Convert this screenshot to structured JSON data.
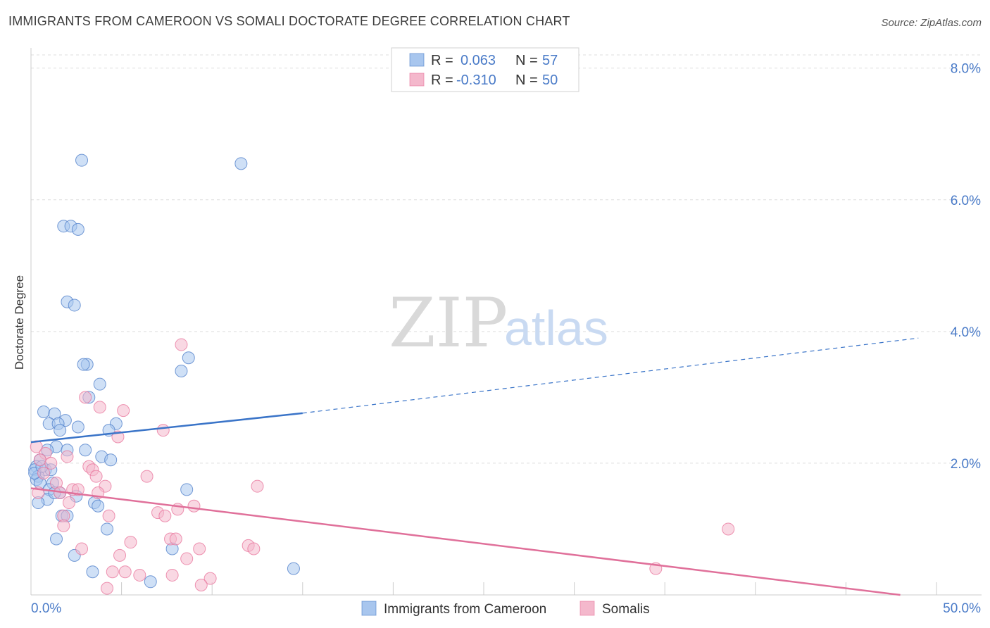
{
  "header": {
    "title": "IMMIGRANTS FROM CAMEROON VS SOMALI DOCTORATE DEGREE CORRELATION CHART",
    "source": "Source: ZipAtlas.com"
  },
  "watermark": {
    "zip": "ZIP",
    "atlas": "atlas"
  },
  "colors": {
    "blue": "#4a7bc8",
    "blue_fill": "#a8c6ee",
    "blue_line": "#3a74c8",
    "pink": "#e8719a",
    "pink_fill": "#f4b8cc",
    "pink_line": "#e0709a",
    "grid": "#dddddd"
  },
  "chart_data": {
    "type": "scatter",
    "title": "IMMIGRANTS FROM CAMEROON VS SOMALI DOCTORATE DEGREE CORRELATION CHART",
    "xlabel": "",
    "ylabel": "Doctorate Degree",
    "xlim": [
      0,
      50
    ],
    "ylim": [
      0,
      8.2
    ],
    "x_tick_labels": [
      "0.0%",
      "50.0%"
    ],
    "y_ticks": [
      2,
      4,
      6,
      8
    ],
    "y_tick_labels": [
      "2.0%",
      "4.0%",
      "6.0%",
      "8.0%"
    ],
    "legend": [
      {
        "r_label": "R =",
        "r_value": "0.063",
        "n_label": "N =",
        "n_value": "57"
      },
      {
        "r_label": "R =",
        "r_value": "-0.310",
        "n_label": "N =",
        "n_value": "50"
      }
    ],
    "series": [
      {
        "name": "Immigrants from Cameroon",
        "color": "#4a7bc8",
        "trend": {
          "x0": 0,
          "y0": 2.32,
          "x1": 15,
          "y1": 2.76,
          "dash_to_x": 49,
          "dash_to_y": 3.9
        },
        "points": [
          [
            2.8,
            6.6
          ],
          [
            11.6,
            6.55
          ],
          [
            1.8,
            5.6
          ],
          [
            2.2,
            5.6
          ],
          [
            2.6,
            5.55
          ],
          [
            2.0,
            4.45
          ],
          [
            2.4,
            4.4
          ],
          [
            8.7,
            3.6
          ],
          [
            3.1,
            3.5
          ],
          [
            2.9,
            3.5
          ],
          [
            8.3,
            3.4
          ],
          [
            3.8,
            3.2
          ],
          [
            3.2,
            3.0
          ],
          [
            0.7,
            2.78
          ],
          [
            1.3,
            2.75
          ],
          [
            1.9,
            2.65
          ],
          [
            1.0,
            2.6
          ],
          [
            1.5,
            2.6
          ],
          [
            2.6,
            2.55
          ],
          [
            1.6,
            2.5
          ],
          [
            4.7,
            2.6
          ],
          [
            4.3,
            2.5
          ],
          [
            1.4,
            2.25
          ],
          [
            2.0,
            2.2
          ],
          [
            3.0,
            2.2
          ],
          [
            0.9,
            2.2
          ],
          [
            3.9,
            2.1
          ],
          [
            4.4,
            2.05
          ],
          [
            0.5,
            2.05
          ],
          [
            0.3,
            1.95
          ],
          [
            0.2,
            1.9
          ],
          [
            0.8,
            1.9
          ],
          [
            1.1,
            1.9
          ],
          [
            0.4,
            1.8
          ],
          [
            0.3,
            1.75
          ],
          [
            0.5,
            1.7
          ],
          [
            1.2,
            1.7
          ],
          [
            1.0,
            1.6
          ],
          [
            1.6,
            1.55
          ],
          [
            8.6,
            1.6
          ],
          [
            2.5,
            1.5
          ],
          [
            0.9,
            1.45
          ],
          [
            0.4,
            1.4
          ],
          [
            3.5,
            1.4
          ],
          [
            3.7,
            1.35
          ],
          [
            1.7,
            1.2
          ],
          [
            2.0,
            1.2
          ],
          [
            4.2,
            1.0
          ],
          [
            1.4,
            0.85
          ],
          [
            7.8,
            0.7
          ],
          [
            2.4,
            0.6
          ],
          [
            14.5,
            0.4
          ],
          [
            3.4,
            0.35
          ],
          [
            6.6,
            0.2
          ],
          [
            0.2,
            1.85
          ],
          [
            0.6,
            1.95
          ],
          [
            1.3,
            1.55
          ]
        ]
      },
      {
        "name": "Somalis",
        "color": "#e8719a",
        "trend": {
          "x0": 0,
          "y0": 1.62,
          "x1": 48,
          "y1": 0.0
        },
        "points": [
          [
            8.3,
            3.8
          ],
          [
            3.0,
            3.0
          ],
          [
            3.8,
            2.85
          ],
          [
            5.1,
            2.8
          ],
          [
            7.3,
            2.5
          ],
          [
            4.8,
            2.4
          ],
          [
            0.3,
            2.25
          ],
          [
            0.8,
            2.15
          ],
          [
            2.0,
            2.1
          ],
          [
            0.5,
            2.05
          ],
          [
            1.1,
            2.0
          ],
          [
            3.2,
            1.95
          ],
          [
            3.4,
            1.9
          ],
          [
            0.7,
            1.85
          ],
          [
            3.6,
            1.8
          ],
          [
            6.4,
            1.8
          ],
          [
            1.4,
            1.7
          ],
          [
            4.1,
            1.65
          ],
          [
            12.5,
            1.65
          ],
          [
            2.3,
            1.6
          ],
          [
            2.6,
            1.6
          ],
          [
            1.6,
            1.55
          ],
          [
            3.7,
            1.55
          ],
          [
            2.1,
            1.4
          ],
          [
            9.0,
            1.35
          ],
          [
            8.1,
            1.3
          ],
          [
            7.0,
            1.25
          ],
          [
            7.4,
            1.2
          ],
          [
            4.3,
            1.2
          ],
          [
            1.8,
            1.2
          ],
          [
            1.8,
            1.05
          ],
          [
            38.5,
            1.0
          ],
          [
            7.7,
            0.85
          ],
          [
            8.0,
            0.85
          ],
          [
            5.5,
            0.8
          ],
          [
            12.0,
            0.75
          ],
          [
            2.8,
            0.7
          ],
          [
            9.3,
            0.7
          ],
          [
            12.3,
            0.7
          ],
          [
            4.9,
            0.6
          ],
          [
            8.6,
            0.55
          ],
          [
            34.5,
            0.4
          ],
          [
            4.5,
            0.35
          ],
          [
            5.2,
            0.35
          ],
          [
            6.0,
            0.3
          ],
          [
            7.8,
            0.3
          ],
          [
            9.9,
            0.25
          ],
          [
            9.4,
            0.15
          ],
          [
            4.2,
            0.1
          ],
          [
            0.4,
            1.55
          ]
        ]
      }
    ]
  }
}
